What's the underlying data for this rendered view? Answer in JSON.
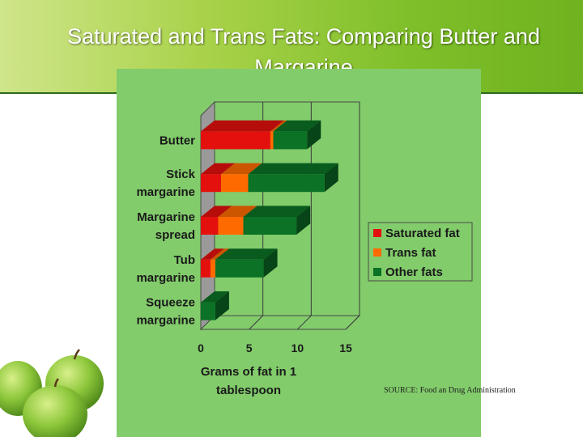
{
  "slide": {
    "title": "Saturated and Trans Fats: Comparing Butter and Margarine",
    "source": "SOURCE: Food an Drug Administration"
  },
  "colors": {
    "saturated": "#e3100e",
    "trans": "#ff6a00",
    "other": "#0b7226",
    "panel": "#82cc6b"
  },
  "chart_data": {
    "type": "bar",
    "orientation": "horizontal",
    "stacked": true,
    "three_d": true,
    "categories": [
      "Butter",
      "Stick margarine",
      "Margarine spread",
      "Tub margarine",
      "Squeeze margarine"
    ],
    "category_lines": [
      [
        "Butter"
      ],
      [
        "Stick",
        "margarine"
      ],
      [
        "Margarine",
        "spread"
      ],
      [
        "Tub",
        "margarine"
      ],
      [
        "Squeeze",
        "margarine"
      ]
    ],
    "series": [
      {
        "name": "Saturated fat",
        "values": [
          7.2,
          2.1,
          1.8,
          1.0,
          0.0
        ]
      },
      {
        "name": "Trans fat",
        "values": [
          0.3,
          2.8,
          2.6,
          0.5,
          0.0
        ]
      },
      {
        "name": "Other fats",
        "values": [
          3.5,
          7.9,
          5.5,
          5.0,
          1.5
        ]
      }
    ],
    "xlabel": "Grams of fat in 1 tablespoon",
    "xlabel_lines": [
      "Grams of fat in 1",
      "tablespoon"
    ],
    "xlim": [
      0,
      15
    ],
    "xticks": [
      "0",
      "5",
      "10",
      "15"
    ],
    "grid": true,
    "legend_position": "right"
  }
}
